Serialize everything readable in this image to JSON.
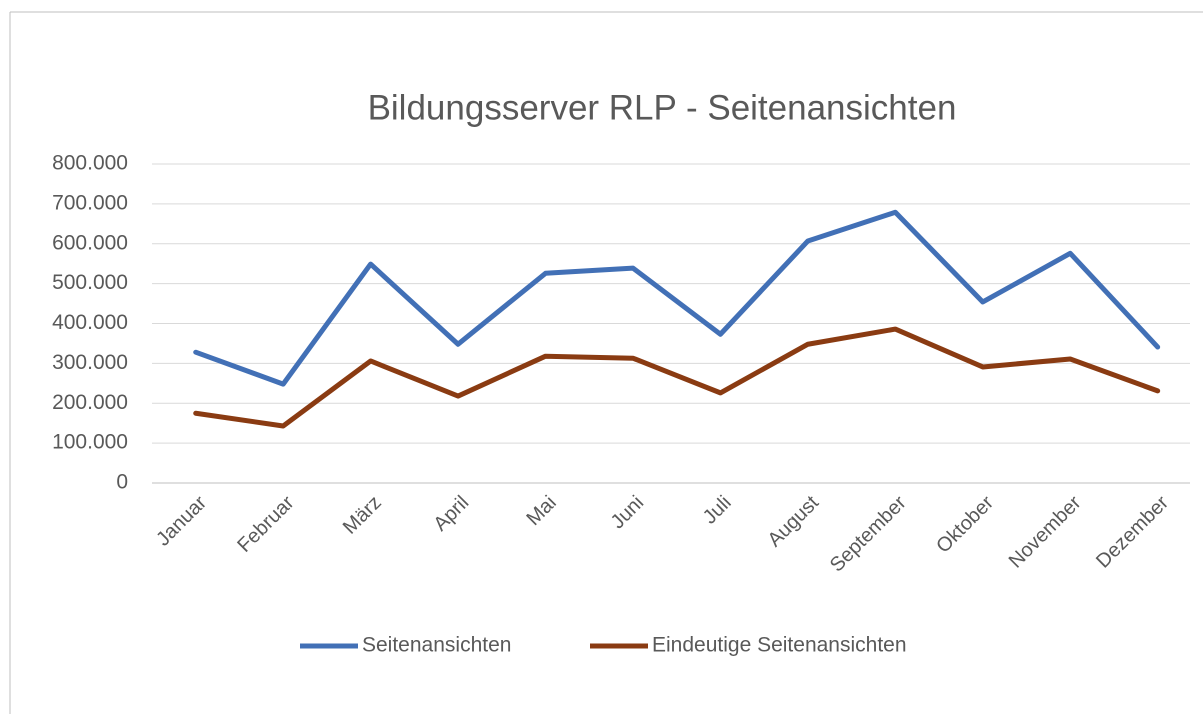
{
  "chart_data": {
    "type": "line",
    "title": "Bildungsserver RLP -  Seitenansichten",
    "categories": [
      "Januar",
      "Februar",
      "März",
      "April",
      "Mai",
      "Juni",
      "Juli",
      "August",
      "September",
      "Oktober",
      "November",
      "Dezember"
    ],
    "series": [
      {
        "name": "Seitenansichten",
        "color": "#4270b6",
        "values": [
          328000,
          248000,
          549000,
          348000,
          526000,
          539000,
          373000,
          607000,
          679000,
          454000,
          576000,
          341000
        ]
      },
      {
        "name": "Eindeutige Seitenansichten",
        "color": "#8a3b12",
        "values": [
          175000,
          143000,
          306000,
          218000,
          318000,
          313000,
          226000,
          348000,
          386000,
          291000,
          311000,
          231000
        ]
      }
    ],
    "ylim": [
      0,
      800000
    ],
    "yticks": [
      0,
      {
        "value": 100000,
        "label": "100.000"
      },
      {
        "value": 200000,
        "label": "200.000"
      },
      {
        "value": 300000,
        "label": "300.000"
      },
      {
        "value": 400000,
        "label": "400.000"
      },
      {
        "value": 500000,
        "label": "500.000"
      },
      {
        "value": 600000,
        "label": "600.000"
      },
      {
        "value": 700000,
        "label": "700.000"
      },
      {
        "value": 800000,
        "label": "800.000"
      }
    ],
    "grid": true,
    "legend": "bottom"
  }
}
